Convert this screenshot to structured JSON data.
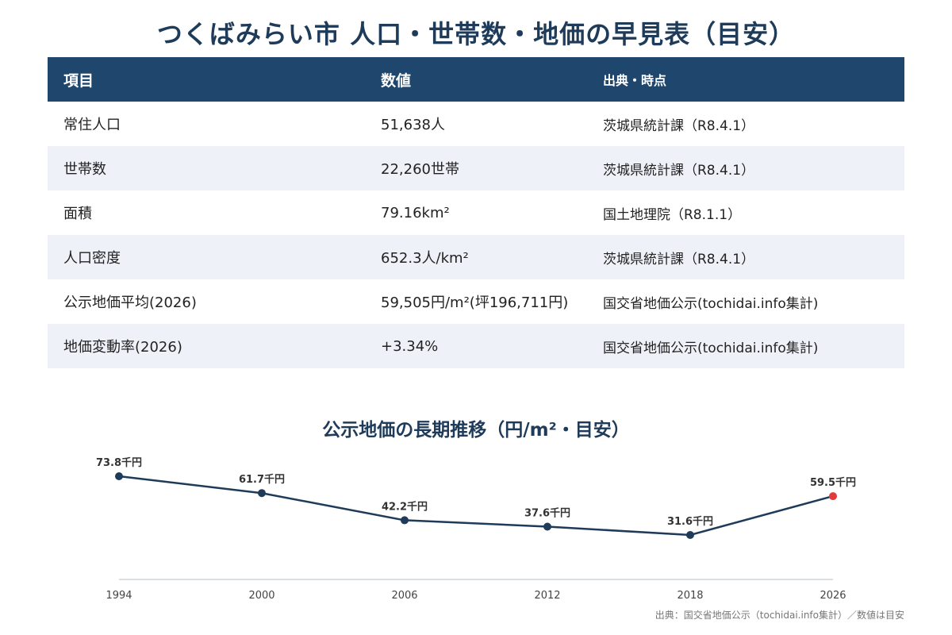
{
  "title": "つくばみらい市 人口・世帯数・地価の早見表（目安）",
  "table": {
    "headers": [
      "項目",
      "数値",
      "出典・時点"
    ],
    "rows": [
      [
        "常住人口",
        "51,638人",
        "茨城県統計課（R8.4.1）"
      ],
      [
        "世帯数",
        "22,260世帯",
        "茨城県統計課（R8.4.1）"
      ],
      [
        "面積",
        "79.16km²",
        "国土地理院（R8.1.1）"
      ],
      [
        "人口密度",
        "652.3人/km²",
        "茨城県統計課（R8.4.1）"
      ],
      [
        "公示地価平均(2026)",
        "59,505円/m²(坪196,711円)",
        "国交省地価公示(tochidai.info集計)"
      ],
      [
        "地価変動率(2026)",
        "+3.34%",
        "国交省地価公示(tochidai.info集計)"
      ]
    ]
  },
  "chart_data": {
    "type": "line",
    "title": "公示地価の長期推移（円/m²・目安）",
    "x": [
      "1994",
      "2000",
      "2006",
      "2012",
      "2018",
      "2026"
    ],
    "values": [
      73.8,
      61.7,
      42.2,
      37.6,
      31.6,
      59.5
    ],
    "data_labels": [
      "73.8千円",
      "61.7千円",
      "42.2千円",
      "37.6千円",
      "31.6千円",
      "59.5千円"
    ],
    "ylim": [
      15,
      75
    ],
    "grid": false,
    "colors": {
      "line": "#1f3b5a",
      "point": "#1f3b5a",
      "highlight": "#e03c3c"
    },
    "highlight_index": 5
  },
  "source": "出典：国交省地価公示（tochidai.info集計）／数値は目安"
}
